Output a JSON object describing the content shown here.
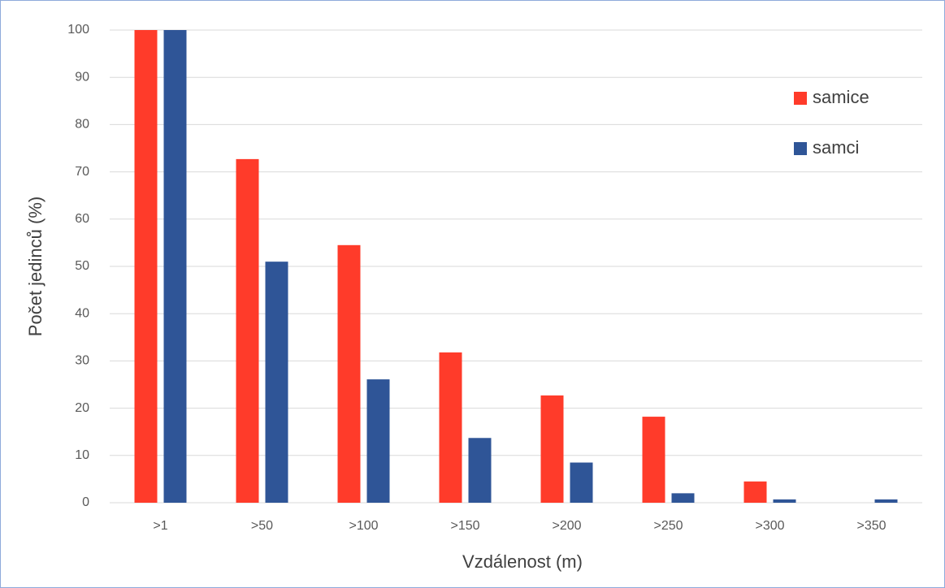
{
  "chart_data": {
    "type": "bar",
    "x_label": "Vzdálenost (m)",
    "y_label": "Počet jedinců (%)",
    "categories": [
      ">1",
      ">50",
      ">100",
      ">150",
      ">200",
      ">250",
      ">300",
      ">350"
    ],
    "series": [
      {
        "name": "samice",
        "color": "#ff3b2a",
        "values": [
          100,
          72.7,
          54.5,
          31.8,
          22.7,
          18.2,
          4.5,
          0
        ]
      },
      {
        "name": "samci",
        "color": "#2f5597",
        "values": [
          100,
          51,
          26.1,
          13.7,
          8.5,
          2,
          0.7,
          0.7
        ]
      }
    ],
    "ylim": [
      0,
      100
    ],
    "yticks": [
      0,
      10,
      20,
      30,
      40,
      50,
      60,
      70,
      80,
      90,
      100
    ],
    "grid": true,
    "legend": "upper right"
  }
}
